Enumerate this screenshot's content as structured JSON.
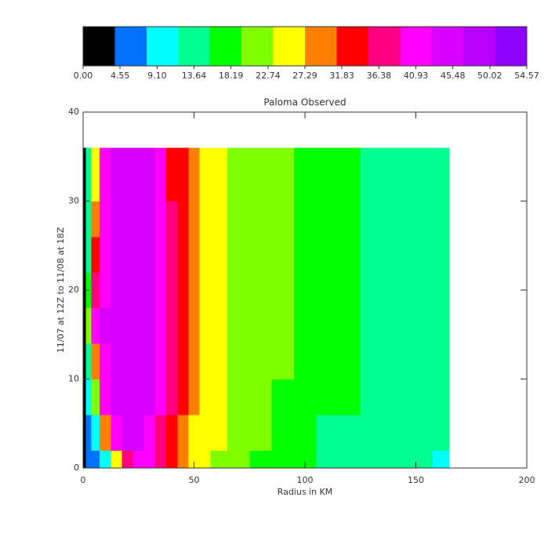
{
  "chart_data": {
    "type": "contour",
    "title": "Paloma Observed",
    "x_label": "Radius in KM",
    "y_label": "11/07 at 12Z to 11/08 at 18Z",
    "xlim": [
      0,
      200
    ],
    "ylim": [
      0,
      40
    ],
    "xticks": [
      0,
      50,
      100,
      150,
      200
    ],
    "yticks": [
      0,
      10,
      20,
      30,
      40
    ],
    "zlim": [
      0,
      54.57
    ],
    "zticks": [
      {
        "value": 0,
        "label": "0.00"
      },
      4.55,
      {
        "value": 9.1,
        "label": "9.10"
      },
      13.64,
      18.19,
      22.74,
      27.29,
      31.83,
      36.38,
      40.93,
      45.48,
      50.02,
      54.57
    ],
    "colors": [
      "#000000",
      "#0070ff",
      "#00ffff",
      "#00ff90",
      "#00ff00",
      "#80ff00",
      "#ffff00",
      "#ff8000",
      "#ff0000",
      "#ff0080",
      "#ff00ff",
      "#d800ff",
      "#b800ff",
      "#9000ff"
    ],
    "x": [
      0,
      2.5,
      5,
      10,
      15,
      20,
      25,
      30,
      35,
      40,
      45,
      50,
      55,
      60,
      70,
      80,
      90,
      100,
      110,
      120,
      130,
      140,
      150,
      165
    ],
    "y": [
      0,
      4,
      8,
      12,
      16,
      20,
      24,
      28,
      32,
      36
    ],
    "z": [
      [
        3,
        5,
        7,
        9,
        25,
        38,
        41,
        40,
        36,
        32,
        29,
        26,
        24,
        23,
        21,
        19,
        16,
        15.6,
        14,
        13.5,
        13,
        12.5,
        12,
        11
      ],
      [
        3,
        6,
        10,
        30,
        41,
        43,
        43,
        42,
        38,
        34,
        30,
        27,
        25,
        24,
        22,
        20,
        18,
        16,
        15,
        14.5,
        14,
        13.5,
        13,
        12
      ],
      [
        3,
        10,
        20,
        40,
        43,
        44,
        44,
        43,
        40,
        36,
        32,
        28,
        26,
        25,
        23,
        21,
        19,
        17.5,
        16.5,
        16,
        15,
        14,
        13.5,
        12.5
      ],
      [
        3,
        14,
        30,
        42,
        44,
        45,
        45,
        44,
        41,
        37,
        33,
        29,
        27,
        25,
        23,
        21,
        19.5,
        18,
        17,
        16.5,
        15,
        14.5,
        14,
        13
      ],
      [
        3,
        20,
        40,
        43,
        45,
        45,
        45,
        44,
        41,
        38,
        34,
        30,
        27,
        25,
        23,
        21,
        20,
        19,
        18,
        17,
        15.5,
        15,
        14,
        13
      ],
      [
        3,
        18,
        36,
        42,
        44,
        45,
        45,
        44,
        41,
        38,
        34,
        30,
        27,
        25,
        23,
        21,
        20,
        19,
        18,
        17,
        15.5,
        15,
        14,
        13
      ],
      [
        3,
        14,
        32,
        42,
        44,
        45,
        45,
        44,
        41,
        37,
        33,
        29,
        27,
        25,
        23,
        21.5,
        20,
        19,
        18,
        16.5,
        15,
        14.5,
        14,
        13
      ],
      [
        3,
        12,
        28,
        41,
        44,
        45,
        45,
        43,
        40,
        36,
        33,
        30,
        27,
        25,
        23,
        21,
        20,
        19,
        18,
        17,
        15.5,
        15,
        14,
        13
      ],
      [
        3,
        12,
        26,
        40,
        44,
        45,
        45,
        43,
        39,
        35,
        32,
        29,
        27,
        25,
        23,
        21,
        20,
        18.5,
        17.5,
        16.5,
        15,
        14.5,
        13.8,
        13
      ],
      [
        3,
        12,
        26,
        40,
        44,
        45,
        45,
        43,
        39,
        35,
        32,
        29,
        27,
        25,
        23,
        21,
        20,
        18.5,
        17.5,
        16.5,
        15,
        14.5,
        13.8,
        13
      ]
    ]
  }
}
